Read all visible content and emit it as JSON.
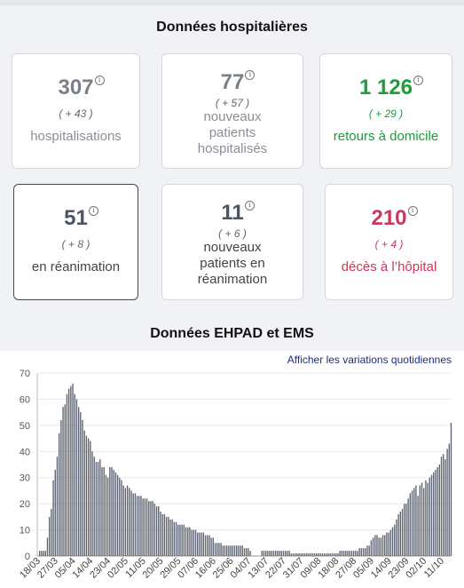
{
  "hospital_section": {
    "title": "Données hospitalières",
    "cards": [
      {
        "value": "307",
        "variation": "( + 43 )",
        "label": "hospitalisations"
      },
      {
        "value": "77",
        "variation": "( + 57 )",
        "label": "nouveaux patients hospitalisés"
      },
      {
        "value": "1 126",
        "variation": "( + 29 )",
        "label": "retours à domicile"
      },
      {
        "value": "51",
        "variation": "( + 8 )",
        "label": "en réanimation"
      },
      {
        "value": "11",
        "variation": "( + 6 )",
        "label": "nouveaux patients en réanimation"
      },
      {
        "value": "210",
        "variation": "( + 4 )",
        "label": "décès à l’hôpital"
      }
    ],
    "colors": {
      "neutral": "#7a808a",
      "green": "#1a9e3a",
      "red": "#c8395a",
      "selected_border": "#2f4a73"
    }
  },
  "ehpad_section": {
    "title": "Données EHPAD et EMS",
    "toggle_label": "Afficher les variations quotidiennes"
  },
  "chart_data": {
    "type": "bar",
    "ylim": [
      0,
      70
    ],
    "yticks": [
      "0",
      "10",
      "20",
      "30",
      "40",
      "50",
      "60",
      "70"
    ],
    "xticks": [
      "18/03",
      "27/03",
      "05/04",
      "14/04",
      "23/04",
      "02/05",
      "11/05",
      "20/05",
      "29/05",
      "07/06",
      "16/06",
      "25/06",
      "04/07",
      "13/07",
      "22/07",
      "31/07",
      "09/08",
      "18/08",
      "27/08",
      "05/09",
      "14/09",
      "23/09",
      "02/10",
      "11/10"
    ],
    "start_date": "2020-03-18",
    "bar_color": "#5c6270",
    "values": [
      2,
      2,
      2,
      2,
      7,
      15,
      18,
      29,
      33,
      38,
      47,
      52,
      57,
      58,
      62,
      64,
      65,
      66,
      62,
      60,
      57,
      55,
      52,
      48,
      46,
      45,
      44,
      40,
      38,
      36,
      36,
      37,
      34,
      34,
      31,
      30,
      34,
      34,
      33,
      32,
      31,
      30,
      29,
      27,
      26,
      27,
      26,
      25,
      24,
      24,
      23,
      23,
      23,
      22,
      22,
      22,
      21,
      21,
      21,
      20,
      19,
      19,
      17,
      16,
      16,
      15,
      15,
      14,
      14,
      13,
      13,
      12,
      12,
      12,
      12,
      11,
      11,
      11,
      10,
      10,
      10,
      9,
      9,
      9,
      9,
      8,
      8,
      8,
      7,
      7,
      5,
      5,
      5,
      5,
      4,
      4,
      4,
      4,
      4,
      4,
      4,
      4,
      4,
      4,
      4,
      3,
      3,
      3,
      2,
      0,
      0,
      0,
      0,
      0,
      2,
      2,
      2,
      2,
      2,
      2,
      2,
      2,
      2,
      2,
      2,
      2,
      2,
      2,
      2,
      1,
      1,
      1,
      1,
      1,
      1,
      1,
      1,
      1,
      1,
      1,
      1,
      1,
      1,
      1,
      1,
      1,
      1,
      1,
      1,
      1,
      1,
      1,
      1,
      1,
      2,
      2,
      2,
      2,
      2,
      2,
      2,
      2,
      2,
      2,
      3,
      3,
      3,
      3,
      4,
      4,
      6,
      7,
      8,
      8,
      7,
      7,
      8,
      8,
      9,
      9,
      10,
      11,
      12,
      14,
      16,
      17,
      18,
      20,
      20,
      22,
      24,
      25,
      26,
      27,
      23,
      27,
      28,
      26,
      29,
      28,
      30,
      31,
      32,
      33,
      34,
      35,
      38,
      39,
      37,
      41,
      43,
      51
    ]
  }
}
